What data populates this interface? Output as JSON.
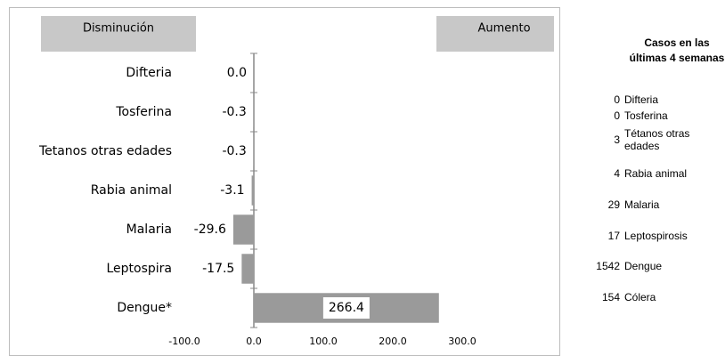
{
  "chart_data": {
    "type": "hbar",
    "annotations": [
      "Disminución",
      "Aumento"
    ],
    "categories": [
      "Difteria",
      "Tosferina",
      "Tetanos otras edades",
      "Rabia animal",
      "Malaria",
      "Leptospira",
      "Dengue*"
    ],
    "values": [
      0,
      -0.3,
      -0.3,
      -3.1,
      -29.6,
      -17.5,
      266.4
    ],
    "value_labels": [
      "0.0",
      "-0.3",
      "-0.3",
      "-3.1",
      "-29.6",
      "-17.5",
      "266.4"
    ],
    "color": "#9a9a9a",
    "xlim": [
      -100,
      300
    ],
    "xticks": [
      {
        "value": -100,
        "label": "-100.0"
      },
      {
        "value": 0,
        "label": "0.0"
      },
      {
        "value": 100,
        "label": "100.0"
      },
      {
        "value": 200,
        "label": "200.0"
      },
      {
        "value": 300,
        "label": "300.0"
      }
    ]
  },
  "table": {
    "title": "Casos en las últimas 4 semanas",
    "rows": [
      [
        0,
        "Difteria"
      ],
      [
        0,
        "Tosferina"
      ],
      [
        3,
        "Tétanos otras edades"
      ],
      [
        4,
        "Rabia animal"
      ],
      [
        29,
        "Malaria"
      ],
      [
        17,
        "Leptospirosis"
      ],
      [
        1542,
        "Dengue"
      ],
      [
        154,
        "Cólera"
      ]
    ]
  }
}
